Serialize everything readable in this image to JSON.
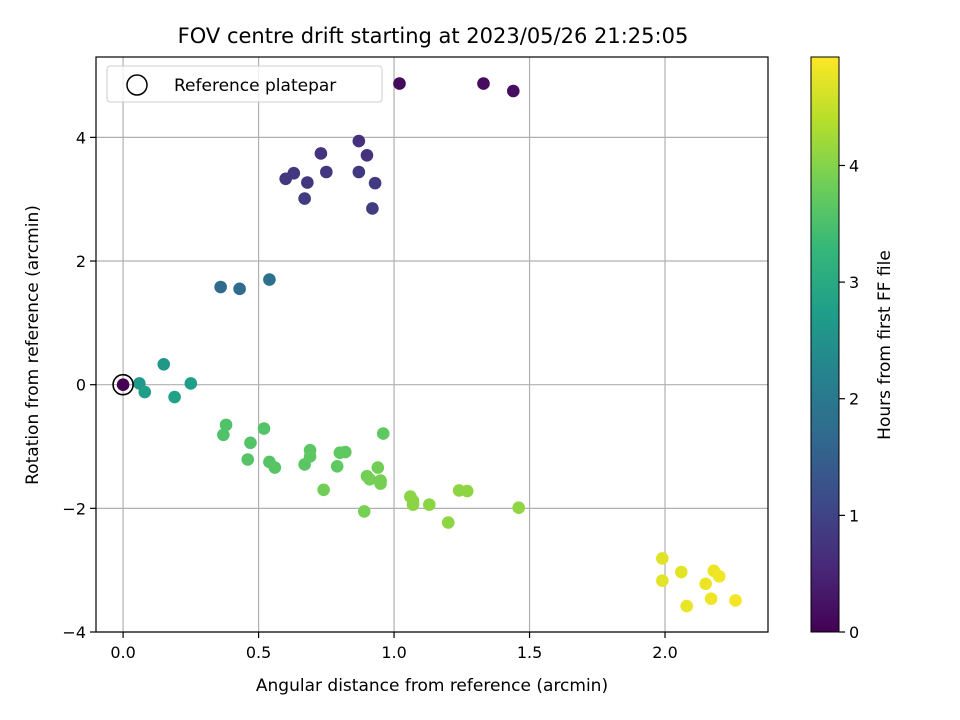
{
  "chart_data": {
    "type": "scatter",
    "title": "FOV centre drift starting at 2023/05/26 21:25:05",
    "xlabel": "Angular distance from reference (arcmin)",
    "ylabel": "Rotation from reference (arcmin)",
    "xlim": [
      -0.1,
      2.38
    ],
    "ylim": [
      -4.0,
      5.3
    ],
    "xticks": [
      0.0,
      0.5,
      1.0,
      1.5,
      2.0
    ],
    "xtick_labels": [
      "0.0",
      "0.5",
      "1.0",
      "1.5",
      "2.0"
    ],
    "yticks": [
      -4,
      -2,
      0,
      2,
      4
    ],
    "ytick_labels": [
      "−4",
      "−2",
      "0",
      "2",
      "4"
    ],
    "grid": true,
    "legend": {
      "placement": "top-left",
      "entries": [
        {
          "label": "Reference platepar",
          "marker": "open-circle"
        }
      ]
    },
    "reference_point": {
      "x": 0.0,
      "y": 0.0
    },
    "colormap": "viridis",
    "colorbar": {
      "label": "Hours from first FF file",
      "range": [
        0,
        4.93
      ],
      "ticks": [
        0,
        1,
        2,
        3,
        4
      ],
      "tick_labels": [
        "0",
        "1",
        "2",
        "3",
        "4"
      ],
      "colors": [
        "#440154",
        "#482878",
        "#3e4989",
        "#31688e",
        "#26828e",
        "#1f9e89",
        "#35b779",
        "#6ece58",
        "#b5de2b",
        "#fde725"
      ]
    },
    "points": [
      {
        "x": 0.0,
        "y": 0.0,
        "c": 0.0
      },
      {
        "x": 1.02,
        "y": 4.87,
        "c": 0.12
      },
      {
        "x": 1.33,
        "y": 4.87,
        "c": 0.16
      },
      {
        "x": 1.44,
        "y": 4.75,
        "c": 0.2
      },
      {
        "x": 0.87,
        "y": 3.94,
        "c": 0.7
      },
      {
        "x": 0.9,
        "y": 3.71,
        "c": 0.72
      },
      {
        "x": 0.73,
        "y": 3.74,
        "c": 0.75
      },
      {
        "x": 0.6,
        "y": 3.33,
        "c": 0.78
      },
      {
        "x": 0.63,
        "y": 3.42,
        "c": 0.8
      },
      {
        "x": 0.68,
        "y": 3.27,
        "c": 0.8
      },
      {
        "x": 0.75,
        "y": 3.44,
        "c": 0.82
      },
      {
        "x": 0.87,
        "y": 3.44,
        "c": 0.83
      },
      {
        "x": 0.93,
        "y": 3.26,
        "c": 0.85
      },
      {
        "x": 0.67,
        "y": 3.01,
        "c": 0.86
      },
      {
        "x": 0.92,
        "y": 2.85,
        "c": 0.9
      },
      {
        "x": 0.36,
        "y": 1.58,
        "c": 1.7
      },
      {
        "x": 0.43,
        "y": 1.55,
        "c": 1.72
      },
      {
        "x": 0.54,
        "y": 1.7,
        "c": 1.82
      },
      {
        "x": 0.15,
        "y": 0.33,
        "c": 2.6
      },
      {
        "x": 0.06,
        "y": 0.02,
        "c": 2.65
      },
      {
        "x": 0.08,
        "y": -0.12,
        "c": 2.72
      },
      {
        "x": 0.25,
        "y": 0.02,
        "c": 2.76
      },
      {
        "x": 0.19,
        "y": -0.2,
        "c": 2.8
      },
      {
        "x": 0.38,
        "y": -0.65,
        "c": 3.55
      },
      {
        "x": 0.37,
        "y": -0.81,
        "c": 3.55
      },
      {
        "x": 0.47,
        "y": -0.94,
        "c": 3.58
      },
      {
        "x": 0.52,
        "y": -0.71,
        "c": 3.58
      },
      {
        "x": 0.46,
        "y": -1.21,
        "c": 3.6
      },
      {
        "x": 0.54,
        "y": -1.25,
        "c": 3.6
      },
      {
        "x": 0.56,
        "y": -1.34,
        "c": 3.62
      },
      {
        "x": 0.67,
        "y": -1.29,
        "c": 3.63
      },
      {
        "x": 0.69,
        "y": -1.06,
        "c": 3.65
      },
      {
        "x": 0.69,
        "y": -1.16,
        "c": 3.66
      },
      {
        "x": 0.79,
        "y": -1.32,
        "c": 3.68
      },
      {
        "x": 0.8,
        "y": -1.1,
        "c": 3.68
      },
      {
        "x": 0.82,
        "y": -1.09,
        "c": 3.7
      },
      {
        "x": 0.96,
        "y": -0.79,
        "c": 3.7
      },
      {
        "x": 0.74,
        "y": -1.7,
        "c": 3.85
      },
      {
        "x": 0.94,
        "y": -1.34,
        "c": 3.85
      },
      {
        "x": 0.9,
        "y": -1.48,
        "c": 3.86
      },
      {
        "x": 0.91,
        "y": -1.53,
        "c": 3.87
      },
      {
        "x": 0.95,
        "y": -1.55,
        "c": 3.88
      },
      {
        "x": 0.95,
        "y": -1.6,
        "c": 3.88
      },
      {
        "x": 0.89,
        "y": -2.05,
        "c": 3.9
      },
      {
        "x": 1.06,
        "y": -1.81,
        "c": 4.05
      },
      {
        "x": 1.07,
        "y": -1.88,
        "c": 4.05
      },
      {
        "x": 1.07,
        "y": -1.94,
        "c": 4.06
      },
      {
        "x": 1.13,
        "y": -1.94,
        "c": 4.06
      },
      {
        "x": 1.2,
        "y": -2.23,
        "c": 4.08
      },
      {
        "x": 1.24,
        "y": -1.71,
        "c": 4.08
      },
      {
        "x": 1.27,
        "y": -1.72,
        "c": 4.09
      },
      {
        "x": 1.46,
        "y": -1.99,
        "c": 4.1
      },
      {
        "x": 1.99,
        "y": -2.81,
        "c": 4.7
      },
      {
        "x": 1.99,
        "y": -3.17,
        "c": 4.72
      },
      {
        "x": 2.06,
        "y": -3.03,
        "c": 4.74
      },
      {
        "x": 2.08,
        "y": -3.58,
        "c": 4.78
      },
      {
        "x": 2.15,
        "y": -3.22,
        "c": 4.8
      },
      {
        "x": 2.18,
        "y": -3.01,
        "c": 4.8
      },
      {
        "x": 2.17,
        "y": -3.46,
        "c": 4.82
      },
      {
        "x": 2.2,
        "y": -3.1,
        "c": 4.84
      },
      {
        "x": 2.26,
        "y": -3.49,
        "c": 4.86
      }
    ]
  }
}
